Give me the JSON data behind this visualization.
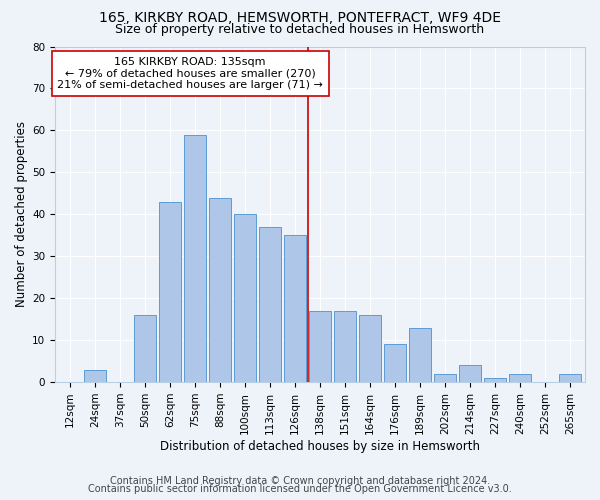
{
  "title": "165, KIRKBY ROAD, HEMSWORTH, PONTEFRACT, WF9 4DE",
  "subtitle": "Size of property relative to detached houses in Hemsworth",
  "xlabel": "Distribution of detached houses by size in Hemsworth",
  "ylabel": "Number of detached properties",
  "categories": [
    "12sqm",
    "24sqm",
    "37sqm",
    "50sqm",
    "62sqm",
    "75sqm",
    "88sqm",
    "100sqm",
    "113sqm",
    "126sqm",
    "138sqm",
    "151sqm",
    "164sqm",
    "176sqm",
    "189sqm",
    "202sqm",
    "214sqm",
    "227sqm",
    "240sqm",
    "252sqm",
    "265sqm"
  ],
  "values": [
    0,
    3,
    0,
    16,
    43,
    59,
    44,
    40,
    37,
    35,
    17,
    17,
    16,
    9,
    13,
    2,
    4,
    1,
    2,
    0,
    2
  ],
  "bar_color": "#aec6e8",
  "bar_edge_color": "#5b9bd5",
  "bg_color": "#eef3fa",
  "grid_color": "#ffffff",
  "vline_x": 9.5,
  "vline_color": "#cc0000",
  "annotation_text": "165 KIRKBY ROAD: 135sqm\n← 79% of detached houses are smaller (270)\n21% of semi-detached houses are larger (71) →",
  "annotation_box_color": "#ffffff",
  "annotation_box_edge": "#cc0000",
  "footer1": "Contains HM Land Registry data © Crown copyright and database right 2024.",
  "footer2": "Contains public sector information licensed under the Open Government Licence v3.0.",
  "ylim": [
    0,
    80
  ],
  "yticks": [
    0,
    10,
    20,
    30,
    40,
    50,
    60,
    70,
    80
  ],
  "title_fontsize": 10,
  "subtitle_fontsize": 9,
  "axis_label_fontsize": 8.5,
  "tick_fontsize": 7.5,
  "annotation_fontsize": 8,
  "footer_fontsize": 7
}
